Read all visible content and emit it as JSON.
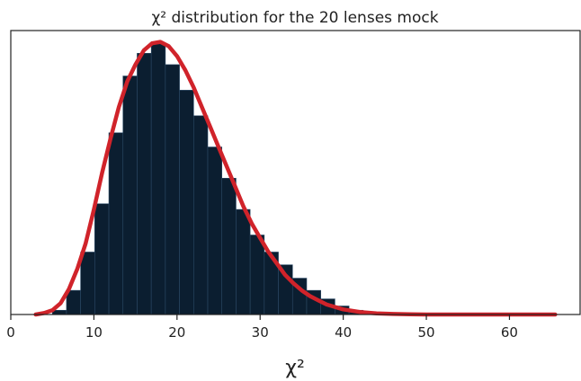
{
  "chart_data": {
    "type": "bar",
    "title": "χ² distribution for the 20 lenses mock",
    "xlabel": "χ²",
    "ylabel": "",
    "xlim": [
      0,
      68.5
    ],
    "ylim": [
      0,
      1.0
    ],
    "yticks_visible": false,
    "grid": false,
    "bar_color": "#0b1e30",
    "bar_edge_color": "#2c4a66",
    "curve_color": "#d0232a",
    "x_ticks": [
      0,
      10,
      20,
      30,
      40,
      50,
      60
    ],
    "x_tick_labels": [
      "0",
      "10",
      "20",
      "30",
      "40",
      "50",
      "60"
    ],
    "bin_edges": [
      5.0,
      6.7,
      8.4,
      10.1,
      11.8,
      13.5,
      15.2,
      16.9,
      18.6,
      20.3,
      22.0,
      23.7,
      25.4,
      27.1,
      28.8,
      30.5,
      32.2,
      33.9,
      35.6,
      37.3,
      39.0,
      40.7,
      42.4,
      44.1
    ],
    "values": [
      0.015,
      0.085,
      0.22,
      0.39,
      0.64,
      0.84,
      0.92,
      0.955,
      0.88,
      0.79,
      0.7,
      0.59,
      0.48,
      0.37,
      0.28,
      0.22,
      0.175,
      0.128,
      0.085,
      0.055,
      0.03,
      0.015,
      0.006
    ],
    "curve": {
      "name": "",
      "x": [
        3.0,
        4.0,
        5.0,
        6.0,
        7.0,
        8.0,
        9.0,
        10.0,
        11.0,
        12.0,
        13.0,
        14.0,
        15.0,
        16.0,
        17.0,
        18.0,
        19.0,
        20.0,
        21.0,
        22.0,
        23.0,
        24.0,
        25.0,
        26.0,
        27.0,
        28.0,
        29.0,
        30.0,
        31.0,
        32.0,
        33.0,
        34.0,
        35.0,
        36.0,
        37.0,
        38.0,
        40.0,
        42.0,
        44.0,
        46.0,
        48.0,
        50.0,
        55.0,
        60.0,
        65.5
      ],
      "y": [
        0.0,
        0.005,
        0.015,
        0.04,
        0.09,
        0.16,
        0.25,
        0.37,
        0.5,
        0.62,
        0.73,
        0.82,
        0.88,
        0.93,
        0.955,
        0.96,
        0.945,
        0.91,
        0.86,
        0.8,
        0.73,
        0.66,
        0.59,
        0.52,
        0.45,
        0.38,
        0.32,
        0.27,
        0.22,
        0.18,
        0.14,
        0.11,
        0.085,
        0.065,
        0.05,
        0.035,
        0.018,
        0.009,
        0.004,
        0.002,
        0.001,
        0.0,
        0.0,
        0.0,
        0.0
      ]
    }
  }
}
